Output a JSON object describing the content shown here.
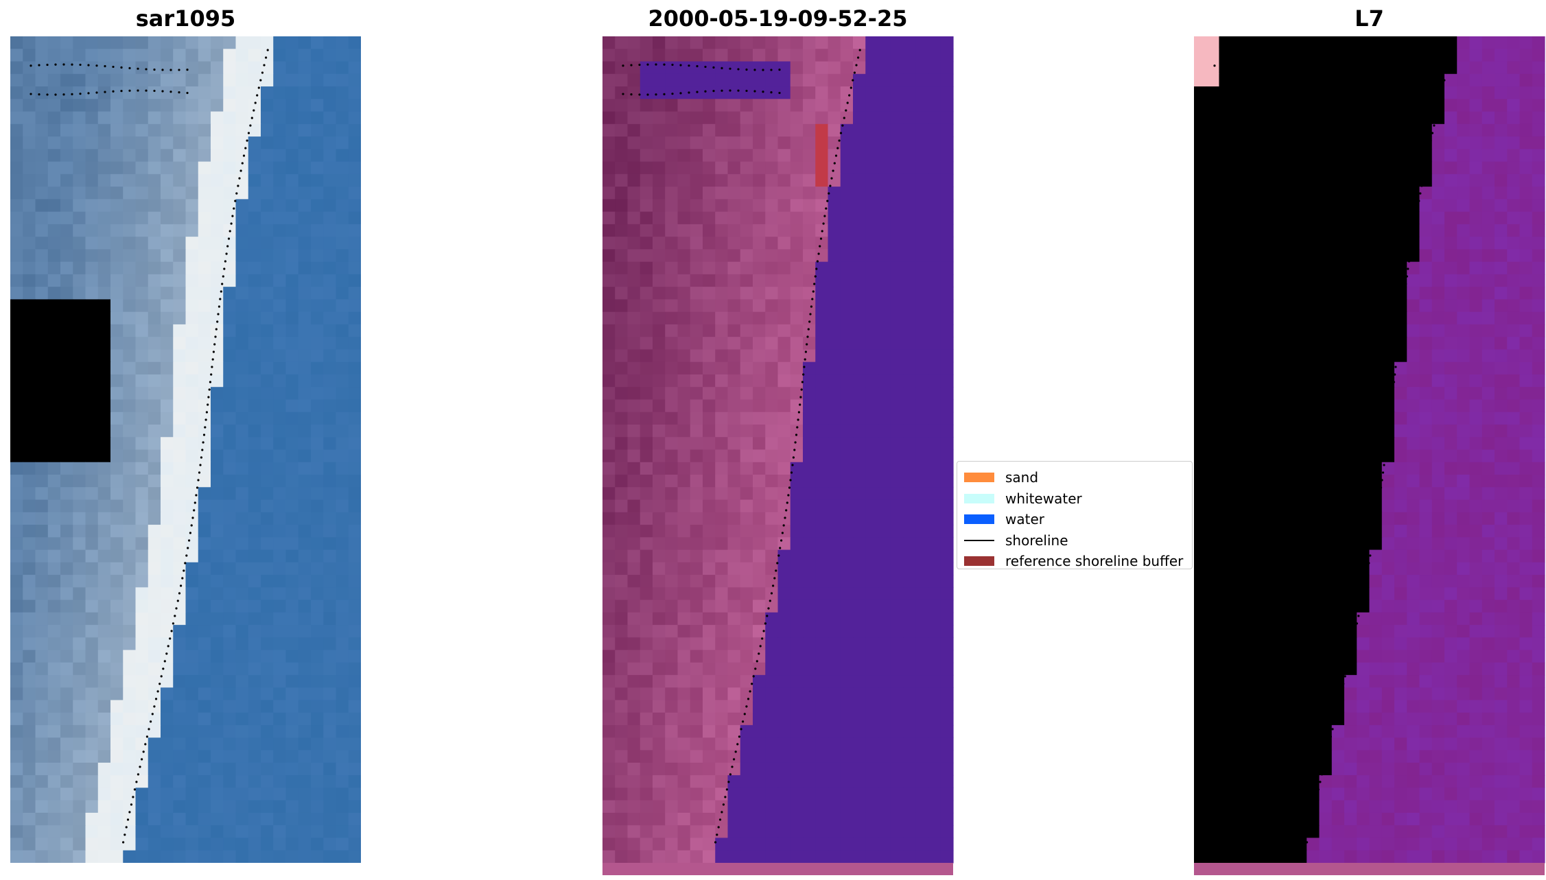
{
  "panels": [
    {
      "id": "rgb",
      "title": "sar1095",
      "colormap": "rgb"
    },
    {
      "id": "classified",
      "title": "2000-05-19-09-52-25",
      "colormap": "classified"
    },
    {
      "id": "index",
      "title": "L7",
      "colormap": "index"
    }
  ],
  "legend": {
    "items": [
      {
        "label": "sand",
        "color": "#ff8c3c",
        "kind": "patch"
      },
      {
        "label": "whitewater",
        "color": "#c8fdfb",
        "kind": "patch"
      },
      {
        "label": "water",
        "color": "#0a5fff",
        "kind": "patch"
      },
      {
        "label": "shoreline",
        "color": "#000000",
        "kind": "line"
      },
      {
        "label": "reference shoreline buffer",
        "color": "#9a3232",
        "kind": "patch"
      }
    ]
  },
  "colors": {
    "classified_water": "#53229a",
    "classified_land": "#b4578e",
    "index_land": "#c8143c",
    "index_water": "#8c2d9a",
    "rgb_water": "#3c78b4",
    "rgb_sand": "#f0f4f6"
  }
}
